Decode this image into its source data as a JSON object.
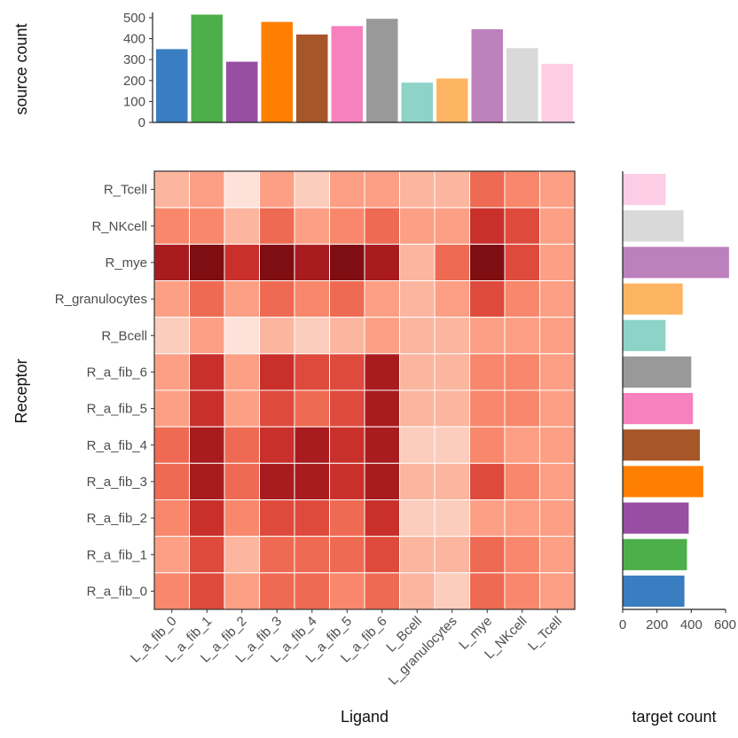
{
  "chart_data": [
    {
      "type": "heatmap",
      "xlabel": "Ligand",
      "ylabel": "Receptor",
      "x": [
        "L_a_fib_0",
        "L_a_fib_1",
        "L_a_fib_2",
        "L_a_fib_3",
        "L_a_fib_4",
        "L_a_fib_5",
        "L_a_fib_6",
        "L_Bcell",
        "L_granulocytes",
        "L_mye",
        "L_NKcell",
        "L_Tcell"
      ],
      "y": [
        "R_Tcell",
        "R_NKcell",
        "R_mye",
        "R_granulocytes",
        "R_Bcell",
        "R_a_fib_6",
        "R_a_fib_5",
        "R_a_fib_4",
        "R_a_fib_3",
        "R_a_fib_2",
        "R_a_fib_1",
        "R_a_fib_0"
      ],
      "values": [
        [
          3,
          4,
          1,
          4,
          2,
          4,
          4,
          3,
          3,
          6,
          5,
          4
        ],
        [
          5,
          5,
          3,
          6,
          4,
          5,
          6,
          4,
          4,
          8,
          7,
          4
        ],
        [
          9,
          10,
          8,
          10,
          9,
          10,
          9,
          3,
          6,
          10,
          7,
          4
        ],
        [
          4,
          6,
          4,
          6,
          5,
          6,
          4,
          3,
          4,
          7,
          5,
          4
        ],
        [
          2,
          4,
          1,
          3,
          2,
          3,
          4,
          3,
          3,
          4,
          4,
          4
        ],
        [
          4,
          8,
          4,
          8,
          7,
          7,
          9,
          3,
          3,
          5,
          5,
          4
        ],
        [
          4,
          8,
          4,
          7,
          6,
          7,
          9,
          3,
          3,
          5,
          5,
          4
        ],
        [
          6,
          9,
          6,
          8,
          9,
          8,
          9,
          2,
          2,
          5,
          4,
          4
        ],
        [
          6,
          9,
          6,
          9,
          9,
          8,
          9,
          3,
          3,
          7,
          5,
          4
        ],
        [
          5,
          8,
          5,
          7,
          7,
          6,
          8,
          2,
          2,
          4,
          4,
          4
        ],
        [
          4,
          7,
          3,
          6,
          6,
          6,
          7,
          3,
          3,
          6,
          5,
          4
        ],
        [
          5,
          7,
          4,
          6,
          6,
          5,
          6,
          3,
          2,
          6,
          5,
          4
        ]
      ]
    },
    {
      "type": "bar",
      "ylabel": "source count",
      "categories": [
        "L_a_fib_0",
        "L_a_fib_1",
        "L_a_fib_2",
        "L_a_fib_3",
        "L_a_fib_4",
        "L_a_fib_5",
        "L_a_fib_6",
        "L_Bcell",
        "L_granulocytes",
        "L_mye",
        "L_NKcell",
        "L_Tcell"
      ],
      "values": [
        350,
        515,
        290,
        480,
        420,
        460,
        495,
        190,
        210,
        445,
        355,
        280
      ],
      "colors": [
        "#3a7dc0",
        "#4daf4a",
        "#984ea3",
        "#ff7f00",
        "#a65628",
        "#f781bf",
        "#999999",
        "#8dd3c7",
        "#fdb462",
        "#bc80bd",
        "#d9d9d9",
        "#fccde5"
      ],
      "ylim": [
        0,
        500
      ],
      "yticks": [
        "0",
        "100",
        "200",
        "300",
        "400",
        "500"
      ]
    },
    {
      "type": "bar",
      "orientation": "horizontal",
      "xlabel": "target count",
      "categories": [
        "R_Tcell",
        "R_NKcell",
        "R_mye",
        "R_granulocytes",
        "R_Bcell",
        "R_a_fib_6",
        "R_a_fib_5",
        "R_a_fib_4",
        "R_a_fib_3",
        "R_a_fib_2",
        "R_a_fib_1",
        "R_a_fib_0"
      ],
      "values": [
        250,
        355,
        620,
        350,
        250,
        400,
        410,
        450,
        470,
        385,
        375,
        360
      ],
      "colors": [
        "#fccde5",
        "#d9d9d9",
        "#bc80bd",
        "#fdb462",
        "#8dd3c7",
        "#999999",
        "#f781bf",
        "#a65628",
        "#ff7f00",
        "#984ea3",
        "#4daf4a",
        "#3a7dc0"
      ],
      "xlim": [
        0,
        600
      ],
      "xticks": [
        "0",
        "200",
        "400",
        "600"
      ]
    }
  ]
}
